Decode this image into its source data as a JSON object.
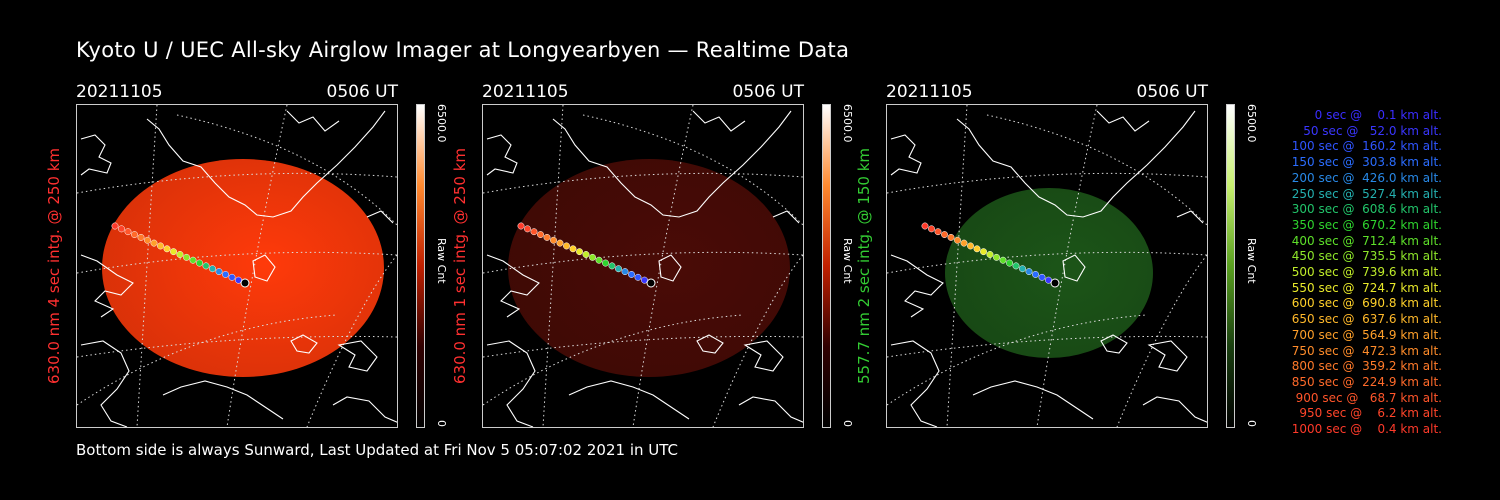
{
  "title": "Kyoto U / UEC All-sky Airglow Imager at Longyearbyen — Realtime Data",
  "footer": "Bottom side is always Sunward, Last Updated at Fri Nov  5 05:07:02 2021 in UTC",
  "colors": {
    "red_label": "#ff3030",
    "green_label": "#33cc33"
  },
  "panels": [
    {
      "date": "20211105",
      "time": "0506 UT",
      "ylabel": "630.0 nm 4 sec intg. @ 250 km",
      "label_color": "#ff3030",
      "image_color": "#ff3a0a",
      "colorbar_gradient": [
        "#ffffff",
        "#ff8a30",
        "#c02000",
        "#300000",
        "#000000"
      ],
      "cb_max": "6500.0",
      "cb_unit": "Raw Cnt",
      "cb_min": "0"
    },
    {
      "date": "20211105",
      "time": "0506 UT",
      "ylabel": "630.0 nm 1 sec intg. @ 250 km",
      "label_color": "#ff3030",
      "image_color": "#4a0b06",
      "colorbar_gradient": [
        "#ffffff",
        "#ff8a30",
        "#c02000",
        "#300000",
        "#000000"
      ],
      "cb_max": "6500.0",
      "cb_unit": "Raw Cnt",
      "cb_min": "0"
    },
    {
      "date": "20211105",
      "time": "0506 UT",
      "ylabel": "557.7 nm 2 sec intg. @ 150 km",
      "label_color": "#33cc33",
      "image_color": "#1c5518",
      "colorbar_gradient": [
        "#ffffff",
        "#c8f070",
        "#5aa020",
        "#1a4010",
        "#000000"
      ],
      "cb_max": "6500.0",
      "cb_unit": "Raw Cnt",
      "cb_min": "0"
    }
  ],
  "legend": [
    {
      "text": "   0 sec @    0.1 km alt.",
      "color": "#3a2dff"
    },
    {
      "text": "  50 sec @   52.0 km alt.",
      "color": "#3a36ff"
    },
    {
      "text": " 100 sec @  160.2 km alt.",
      "color": "#2f55ff"
    },
    {
      "text": " 150 sec @  303.8 km alt.",
      "color": "#2b6dff"
    },
    {
      "text": " 200 sec @  426.0 km alt.",
      "color": "#2888e6"
    },
    {
      "text": " 250 sec @  527.4 km alt.",
      "color": "#24b0b0"
    },
    {
      "text": " 300 sec @  608.6 km alt.",
      "color": "#22c46a"
    },
    {
      "text": " 350 sec @  670.2 km alt.",
      "color": "#2ed42e"
    },
    {
      "text": " 400 sec @  712.4 km alt.",
      "color": "#5ee02a"
    },
    {
      "text": " 450 sec @  735.5 km alt.",
      "color": "#8ee62a"
    },
    {
      "text": " 500 sec @  739.6 km alt.",
      "color": "#c0ec2a"
    },
    {
      "text": " 550 sec @  724.7 km alt.",
      "color": "#e8e82a"
    },
    {
      "text": " 600 sec @  690.8 km alt.",
      "color": "#ffd02a"
    },
    {
      "text": " 650 sec @  637.6 km alt.",
      "color": "#ffb82a"
    },
    {
      "text": " 700 sec @  564.9 km alt.",
      "color": "#ffa02a"
    },
    {
      "text": " 750 sec @  472.3 km alt.",
      "color": "#ff8c2a"
    },
    {
      "text": " 800 sec @  359.2 km alt.",
      "color": "#ff7a2a"
    },
    {
      "text": " 850 sec @  224.9 km alt.",
      "color": "#ff6a2a"
    },
    {
      "text": " 900 sec @   68.7 km alt.",
      "color": "#ff552a"
    },
    {
      "text": " 950 sec @    6.2 km alt.",
      "color": "#ff452a"
    },
    {
      "text": "1000 sec @    0.4 km alt.",
      "color": "#ff3a2a"
    }
  ]
}
